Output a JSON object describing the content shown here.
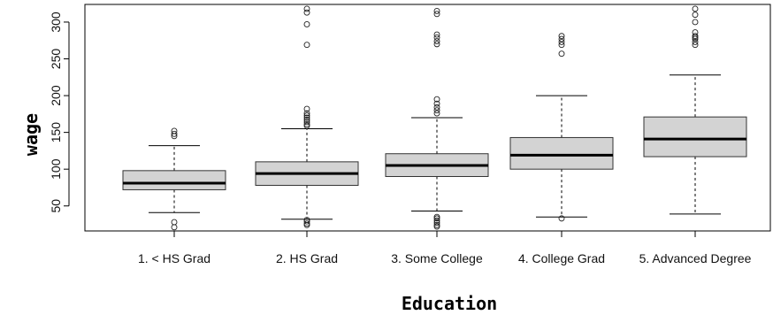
{
  "chart_data": {
    "type": "box",
    "xlabel": "Education",
    "ylabel": "wage",
    "ylim": [
      16,
      324
    ],
    "yticks": [
      50,
      100,
      150,
      200,
      250,
      300
    ],
    "grid": false,
    "categories": [
      "1. < HS Grad",
      "2. HS Grad",
      "3. Some College",
      "4. College Grad",
      "5. Advanced Degree"
    ],
    "boxes": [
      {
        "category": "1. < HS Grad",
        "whisker_low": 41,
        "q1": 72,
        "median": 81,
        "q3": 98,
        "whisker_high": 132,
        "outliers": [
          21,
          28,
          145,
          148,
          152
        ]
      },
      {
        "category": "2. HS Grad",
        "whisker_low": 32,
        "q1": 78,
        "median": 94,
        "q3": 110,
        "whisker_high": 155,
        "outliers": [
          24,
          26,
          29,
          31,
          159,
          161,
          164,
          167,
          170,
          173,
          176,
          182,
          269,
          297,
          313,
          318
        ]
      },
      {
        "category": "3. Some College",
        "whisker_low": 43,
        "q1": 90,
        "median": 105,
        "q3": 121,
        "whisker_high": 170,
        "outliers": [
          22,
          24,
          27,
          30,
          33,
          35,
          176,
          180,
          184,
          189,
          195,
          270,
          274,
          279,
          283,
          311,
          315
        ]
      },
      {
        "category": "4. College Grad",
        "whisker_low": 35,
        "q1": 100,
        "median": 119,
        "q3": 143,
        "whisker_high": 200,
        "outliers": [
          33,
          257,
          269,
          273,
          277,
          281
        ]
      },
      {
        "category": "5. Advanced Degree",
        "whisker_low": 39,
        "q1": 117,
        "median": 141,
        "q3": 171,
        "whisker_high": 228,
        "outliers": [
          269,
          273,
          277,
          279,
          281,
          286,
          300,
          310,
          318
        ]
      }
    ],
    "box_fill": "#d3d3d3",
    "line_color": "#000000"
  }
}
